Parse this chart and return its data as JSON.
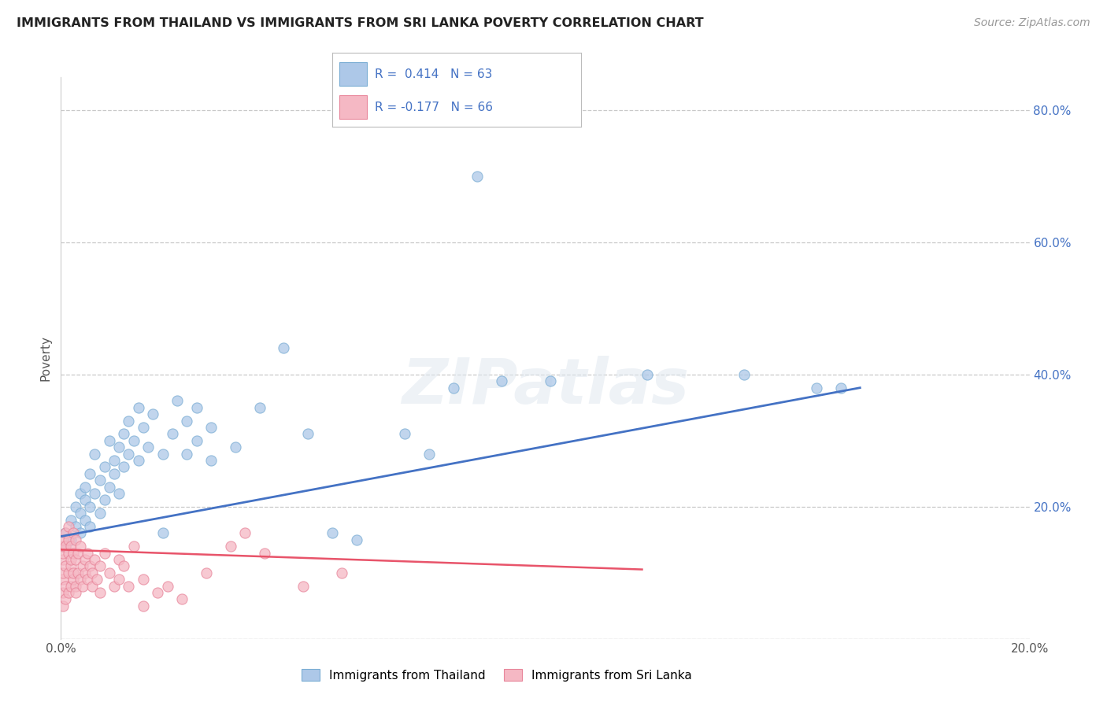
{
  "title": "IMMIGRANTS FROM THAILAND VS IMMIGRANTS FROM SRI LANKA POVERTY CORRELATION CHART",
  "source": "Source: ZipAtlas.com",
  "ylabel": "Poverty",
  "xlim": [
    0.0,
    0.2
  ],
  "ylim": [
    0.0,
    0.85
  ],
  "x_tick_positions": [
    0.0,
    0.05,
    0.1,
    0.15,
    0.2
  ],
  "x_tick_labels": [
    "0.0%",
    "",
    "",
    "",
    "20.0%"
  ],
  "y_tick_positions": [
    0.0,
    0.2,
    0.4,
    0.6,
    0.8
  ],
  "y_tick_labels_right": [
    "",
    "20.0%",
    "40.0%",
    "60.0%",
    "80.0%"
  ],
  "thailand_color": "#adc8e8",
  "thailand_edge": "#7aadd4",
  "srilanka_color": "#f5b8c4",
  "srilanka_edge": "#e8859a",
  "line_thailand": "#4472c4",
  "line_srilanka": "#e8546a",
  "R_thailand": 0.414,
  "N_thailand": 63,
  "R_srilanka": -0.177,
  "N_srilanka": 66,
  "watermark": "ZIPatlas",
  "thailand_points": [
    [
      0.001,
      0.14
    ],
    [
      0.001,
      0.16
    ],
    [
      0.002,
      0.18
    ],
    [
      0.002,
      0.15
    ],
    [
      0.003,
      0.2
    ],
    [
      0.003,
      0.17
    ],
    [
      0.004,
      0.22
    ],
    [
      0.004,
      0.19
    ],
    [
      0.004,
      0.16
    ],
    [
      0.005,
      0.21
    ],
    [
      0.005,
      0.18
    ],
    [
      0.005,
      0.23
    ],
    [
      0.006,
      0.25
    ],
    [
      0.006,
      0.2
    ],
    [
      0.006,
      0.17
    ],
    [
      0.007,
      0.22
    ],
    [
      0.007,
      0.28
    ],
    [
      0.008,
      0.24
    ],
    [
      0.008,
      0.19
    ],
    [
      0.009,
      0.26
    ],
    [
      0.009,
      0.21
    ],
    [
      0.01,
      0.3
    ],
    [
      0.01,
      0.23
    ],
    [
      0.011,
      0.27
    ],
    [
      0.011,
      0.25
    ],
    [
      0.012,
      0.29
    ],
    [
      0.012,
      0.22
    ],
    [
      0.013,
      0.31
    ],
    [
      0.013,
      0.26
    ],
    [
      0.014,
      0.28
    ],
    [
      0.014,
      0.33
    ],
    [
      0.015,
      0.3
    ],
    [
      0.016,
      0.27
    ],
    [
      0.016,
      0.35
    ],
    [
      0.017,
      0.32
    ],
    [
      0.018,
      0.29
    ],
    [
      0.019,
      0.34
    ],
    [
      0.021,
      0.28
    ],
    [
      0.021,
      0.16
    ],
    [
      0.023,
      0.31
    ],
    [
      0.024,
      0.36
    ],
    [
      0.026,
      0.33
    ],
    [
      0.026,
      0.28
    ],
    [
      0.028,
      0.3
    ],
    [
      0.028,
      0.35
    ],
    [
      0.031,
      0.27
    ],
    [
      0.031,
      0.32
    ],
    [
      0.036,
      0.29
    ],
    [
      0.041,
      0.35
    ],
    [
      0.046,
      0.44
    ],
    [
      0.051,
      0.31
    ],
    [
      0.056,
      0.16
    ],
    [
      0.061,
      0.15
    ],
    [
      0.071,
      0.31
    ],
    [
      0.076,
      0.28
    ],
    [
      0.081,
      0.38
    ],
    [
      0.086,
      0.7
    ],
    [
      0.091,
      0.39
    ],
    [
      0.101,
      0.39
    ],
    [
      0.121,
      0.4
    ],
    [
      0.141,
      0.4
    ],
    [
      0.156,
      0.38
    ],
    [
      0.161,
      0.38
    ]
  ],
  "srilanka_points": [
    [
      0.0005,
      0.05
    ],
    [
      0.0005,
      0.07
    ],
    [
      0.0005,
      0.09
    ],
    [
      0.0005,
      0.1
    ],
    [
      0.0005,
      0.12
    ],
    [
      0.0005,
      0.13
    ],
    [
      0.0005,
      0.14
    ],
    [
      0.0005,
      0.15
    ],
    [
      0.001,
      0.06
    ],
    [
      0.001,
      0.08
    ],
    [
      0.001,
      0.11
    ],
    [
      0.001,
      0.14
    ],
    [
      0.001,
      0.16
    ],
    [
      0.0015,
      0.07
    ],
    [
      0.0015,
      0.1
    ],
    [
      0.0015,
      0.13
    ],
    [
      0.0015,
      0.15
    ],
    [
      0.0015,
      0.17
    ],
    [
      0.002,
      0.08
    ],
    [
      0.002,
      0.11
    ],
    [
      0.002,
      0.14
    ],
    [
      0.002,
      0.12
    ],
    [
      0.0025,
      0.09
    ],
    [
      0.0025,
      0.13
    ],
    [
      0.0025,
      0.16
    ],
    [
      0.0025,
      0.1
    ],
    [
      0.003,
      0.08
    ],
    [
      0.003,
      0.12
    ],
    [
      0.003,
      0.15
    ],
    [
      0.003,
      0.07
    ],
    [
      0.0035,
      0.1
    ],
    [
      0.0035,
      0.13
    ],
    [
      0.004,
      0.09
    ],
    [
      0.004,
      0.14
    ],
    [
      0.0045,
      0.11
    ],
    [
      0.0045,
      0.08
    ],
    [
      0.005,
      0.12
    ],
    [
      0.005,
      0.1
    ],
    [
      0.0055,
      0.09
    ],
    [
      0.0055,
      0.13
    ],
    [
      0.006,
      0.11
    ],
    [
      0.0065,
      0.08
    ],
    [
      0.0065,
      0.1
    ],
    [
      0.007,
      0.12
    ],
    [
      0.0075,
      0.09
    ],
    [
      0.008,
      0.11
    ],
    [
      0.008,
      0.07
    ],
    [
      0.009,
      0.13
    ],
    [
      0.01,
      0.1
    ],
    [
      0.011,
      0.08
    ],
    [
      0.012,
      0.09
    ],
    [
      0.012,
      0.12
    ],
    [
      0.013,
      0.11
    ],
    [
      0.014,
      0.08
    ],
    [
      0.015,
      0.14
    ],
    [
      0.017,
      0.09
    ],
    [
      0.017,
      0.05
    ],
    [
      0.02,
      0.07
    ],
    [
      0.022,
      0.08
    ],
    [
      0.025,
      0.06
    ],
    [
      0.03,
      0.1
    ],
    [
      0.035,
      0.14
    ],
    [
      0.038,
      0.16
    ],
    [
      0.042,
      0.13
    ],
    [
      0.05,
      0.08
    ],
    [
      0.058,
      0.1
    ]
  ]
}
